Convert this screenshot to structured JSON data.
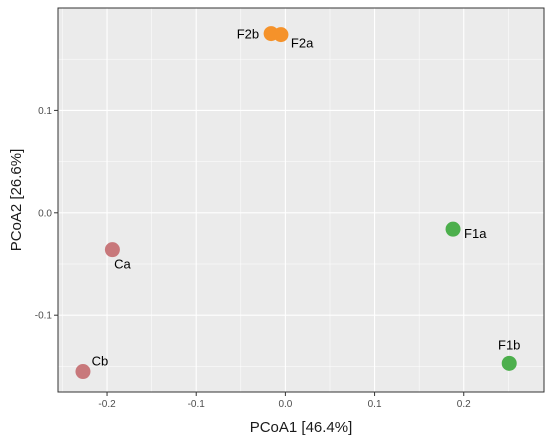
{
  "chart_data": {
    "type": "scatter",
    "title": "",
    "xlabel": "PCoA1   [46.4%]",
    "ylabel": "PCoA2   [26.6%]",
    "xlim": [
      -0.255,
      0.29
    ],
    "ylim": [
      -0.175,
      0.2
    ],
    "x_ticks": [
      -0.2,
      -0.1,
      0.0,
      0.1,
      0.2
    ],
    "x_tick_labels": [
      "-0.2",
      "-0.1",
      "0.0",
      "0.1",
      "0.2"
    ],
    "y_ticks": [
      -0.1,
      0.0,
      0.1
    ],
    "y_tick_labels": [
      "-0.1",
      "0.0",
      "0.1"
    ],
    "grid": true,
    "legend": "none",
    "colors": {
      "C": "#c8787b",
      "F1": "#4caf4c",
      "F2": "#f5922a",
      "panel": "#ebebeb",
      "grid": "#ffffff"
    },
    "points": [
      {
        "label": "F2b",
        "group": "F2",
        "x": -0.016,
        "y": 0.175
      },
      {
        "label": "F2a",
        "group": "F2",
        "x": -0.005,
        "y": 0.174
      },
      {
        "label": "F1a",
        "group": "F1",
        "x": 0.188,
        "y": -0.016
      },
      {
        "label": "F1b",
        "group": "F1",
        "x": 0.251,
        "y": -0.147
      },
      {
        "label": "Ca",
        "group": "C",
        "x": -0.194,
        "y": -0.036
      },
      {
        "label": "Cb",
        "group": "C",
        "x": -0.227,
        "y": -0.155
      }
    ]
  }
}
